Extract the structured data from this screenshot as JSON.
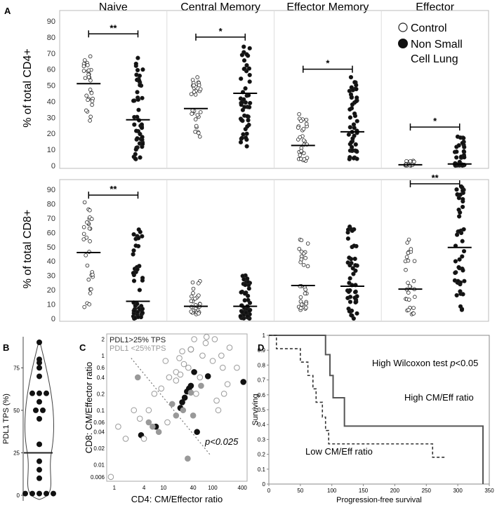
{
  "panel_labels": {
    "a": "A",
    "b": "B",
    "c": "C",
    "d": "D"
  },
  "legend": {
    "control": "Control",
    "nsclc_line1": "Non Small",
    "nsclc_line2": "Cell Lung"
  },
  "chart_data": [
    {
      "panel": "A-top",
      "type": "scatter",
      "categories": [
        "Naive",
        "Central Memory",
        "Effector Memory",
        "Effector"
      ],
      "groups": [
        "Control",
        "Non Small Cell Lung"
      ],
      "ylabel": "% of total CD4+",
      "ylim": [
        0,
        90
      ],
      "yticks": [
        "0",
        "10",
        "20",
        "30",
        "40",
        "50",
        "60",
        "70",
        "80",
        "90"
      ],
      "medians": [
        [
          51,
          28.5
        ],
        [
          35.5,
          45
        ],
        [
          12.5,
          21
        ],
        [
          0.5,
          1
        ]
      ],
      "ranges": [
        [
          28,
          68
        ],
        [
          4,
          67
        ],
        [
          18,
          55
        ],
        [
          12,
          74
        ],
        [
          3,
          32
        ],
        [
          4,
          55
        ],
        [
          0,
          3
        ],
        [
          0,
          18
        ]
      ],
      "significance": [
        {
          "category": "Naive",
          "label": "**",
          "y": 82
        },
        {
          "category": "Central Memory",
          "label": "*",
          "y": 80
        },
        {
          "category": "Effector Memory",
          "label": "*",
          "y": 60
        },
        {
          "category": "Effector",
          "label": "*",
          "y": 24
        }
      ]
    },
    {
      "panel": "A-bottom",
      "type": "scatter",
      "categories": [
        "Naive",
        "Central Memory",
        "Effector Memory",
        "Effector"
      ],
      "groups": [
        "Control",
        "Non Small Cell Lung"
      ],
      "ylabel": "% of total CD8+",
      "ylim": [
        0,
        90
      ],
      "yticks": [
        "0",
        "10",
        "20",
        "30",
        "40",
        "50",
        "60",
        "70",
        "80",
        "90"
      ],
      "medians": [
        [
          46,
          12
        ],
        [
          8.5,
          8.5
        ],
        [
          23,
          22.5
        ],
        [
          20.5,
          49.5
        ]
      ],
      "ranges": [
        [
          8,
          81
        ],
        [
          0,
          62
        ],
        [
          3,
          26
        ],
        [
          0,
          30
        ],
        [
          6,
          55
        ],
        [
          0,
          64
        ],
        [
          3,
          55
        ],
        [
          6,
          92
        ]
      ],
      "significance": [
        {
          "category": "Naive",
          "label": "**",
          "y": 86
        },
        {
          "category": "Effector",
          "label": "**",
          "y": 94
        }
      ]
    },
    {
      "panel": "B",
      "type": "scatter",
      "title": "",
      "ylabel": "PDL1 TPS (%)",
      "ylim": [
        0,
        90
      ],
      "yticks": [
        "0",
        "25",
        "50",
        "75"
      ],
      "median": 25,
      "values": [
        90,
        80,
        78,
        75,
        70,
        60,
        60,
        60,
        55,
        50,
        50,
        45,
        30,
        20,
        15,
        10,
        1,
        1,
        1,
        1,
        1
      ]
    },
    {
      "panel": "C",
      "type": "scatter",
      "xlabel": "CD4: CM/Effector ratio",
      "ylabel": "CD8: CM/Effector ratio",
      "xscale": "log",
      "yscale": "log",
      "xlim": [
        0.7,
        500
      ],
      "ylim": [
        0.005,
        2.5
      ],
      "xticks": [
        "1",
        "4",
        "10",
        "40",
        "100",
        "400"
      ],
      "yticks": [
        "0.006",
        "0.01",
        "0.02",
        "0.04",
        "0.06",
        "0.1",
        "0.2",
        "0.4",
        "0.6",
        "1",
        "2"
      ],
      "legend": [
        "PDL1>25% TPS",
        "PDL1 <25%TPS"
      ],
      "annotation": "p<0.025",
      "series": [
        {
          "name": "PDL1>25% TPS",
          "points": [
            [
              3.5,
              0.035
            ],
            [
              7,
              0.05
            ],
            [
              22,
              0.11
            ],
            [
              24,
              0.14
            ],
            [
              27,
              0.17
            ],
            [
              30,
              0.22
            ],
            [
              33,
              0.25
            ],
            [
              36,
              0.28
            ],
            [
              42,
              0.5
            ],
            [
              48,
              0.04
            ],
            [
              80,
              0.42
            ],
            [
              420,
              0.33
            ],
            [
              36,
              1.3
            ]
          ]
        },
        {
          "name": "PDL1 <25%TPS",
          "points": [
            [
              3,
              0.4
            ],
            [
              5,
              0.06
            ],
            [
              6,
              0.05
            ],
            [
              8,
              0.04
            ],
            [
              15,
              0.13
            ],
            [
              18,
              0.08
            ],
            [
              25,
              0.1
            ],
            [
              31,
              0.013
            ],
            [
              36,
              0.21
            ],
            [
              40,
              0.08
            ],
            [
              58,
              0.28
            ]
          ]
        },
        {
          "name": "Control",
          "points": [
            [
              0.85,
              0.006
            ],
            [
              1.2,
              0.05
            ],
            [
              1.7,
              0.03
            ],
            [
              2.5,
              0.1
            ],
            [
              3.3,
              0.07
            ],
            [
              4,
              0.03
            ],
            [
              5,
              0.1
            ],
            [
              6.5,
              0.2
            ],
            [
              9,
              0.25
            ],
            [
              11,
              0.8
            ],
            [
              12,
              0.06
            ],
            [
              13,
              0.4
            ],
            [
              18,
              0.35
            ],
            [
              18,
              0.5
            ],
            [
              21,
              0.9
            ],
            [
              22,
              0.45
            ],
            [
              24,
              1.2
            ],
            [
              26,
              0.7
            ],
            [
              32,
              0.6
            ],
            [
              36,
              1.3
            ],
            [
              42,
              2
            ],
            [
              55,
              0.4
            ],
            [
              62,
              1
            ],
            [
              72,
              1.7
            ],
            [
              100,
              0.8
            ],
            [
              120,
              0.15
            ],
            [
              130,
              0.1
            ],
            [
              150,
              1
            ],
            [
              160,
              0.6
            ],
            [
              200,
              0.3
            ],
            [
              220,
              1.4
            ],
            [
              310,
              0.6
            ],
            [
              110,
              2
            ],
            [
              75,
              2.2
            ],
            [
              46,
              0.2
            ],
            [
              170,
              0.2
            ]
          ]
        }
      ]
    },
    {
      "panel": "D",
      "type": "line",
      "xlabel": "Progression-free survival",
      "ylabel": "Surviving",
      "xlim": [
        0,
        350
      ],
      "ylim": [
        0,
        1
      ],
      "xticks": [
        "0",
        "50",
        "100",
        "150",
        "200",
        "250",
        "300",
        "350"
      ],
      "yticks": [
        "0",
        "0.1",
        "0.2",
        "0.3",
        "0.4",
        "0.5",
        "0.6",
        "0.7",
        "0.8",
        "0.9",
        "1"
      ],
      "annotation_prefix": "High Wilcoxon test ",
      "annotation_p": "p",
      "annotation_suffix": "<0.05",
      "series": [
        {
          "name": "High CM/Eff ratio",
          "x": [
            0,
            90,
            90,
            97,
            97,
            102,
            102,
            120,
            120,
            215,
            215,
            340,
            340
          ],
          "y": [
            1,
            1,
            0.87,
            0.87,
            0.73,
            0.73,
            0.58,
            0.58,
            0.39,
            0.39,
            0.39,
            0.39,
            0
          ]
        },
        {
          "name": "Low CM/Eff ratio",
          "x": [
            0,
            12,
            12,
            50,
            50,
            62,
            62,
            70,
            70,
            75,
            75,
            85,
            85,
            90,
            90,
            95,
            95,
            175,
            175,
            260,
            260,
            280
          ],
          "y": [
            1,
            1,
            0.91,
            0.91,
            0.82,
            0.82,
            0.73,
            0.73,
            0.64,
            0.64,
            0.55,
            0.55,
            0.45,
            0.45,
            0.36,
            0.36,
            0.27,
            0.27,
            0.27,
            0.27,
            0.18,
            0.18
          ]
        }
      ]
    }
  ]
}
